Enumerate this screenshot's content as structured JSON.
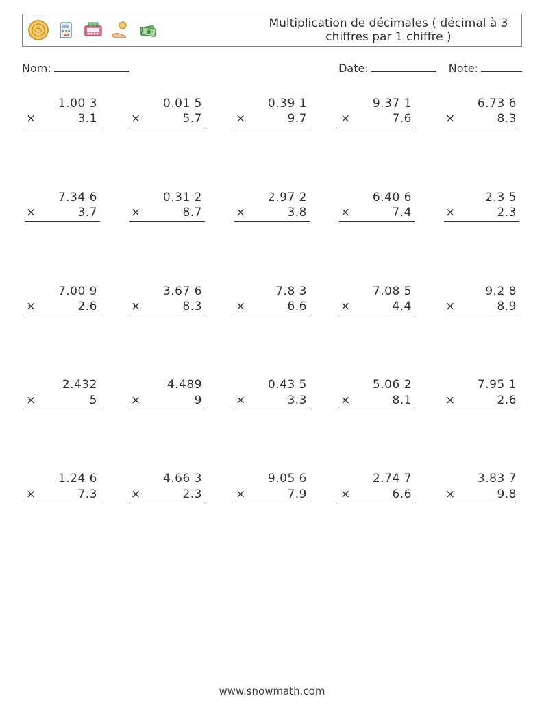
{
  "title": "Multiplication de décimales ( décimal à 3 chiffres par 1 chiffre )",
  "labels": {
    "name": "Nom:",
    "date": "Date:",
    "note": "Note:"
  },
  "blank_widths": {
    "name": 110,
    "date": 95,
    "note": 60
  },
  "operator_symbol": "×",
  "footer": "www.snowmath.com",
  "layout": {
    "rows": 5,
    "cols": 5
  },
  "style": {
    "font_size_body": 17,
    "font_size_title": 17,
    "text_color": "#333333",
    "border_color": "#888888",
    "rule_color": "#333333",
    "background": "#ffffff"
  },
  "icons": [
    "coin-icon",
    "card-reader-icon",
    "money-machine-icon",
    "hand-coin-icon",
    "cash-icon"
  ],
  "problems": [
    [
      {
        "a": "1.00 3",
        "b": "3.1"
      },
      {
        "a": "0.01 5",
        "b": "5.7"
      },
      {
        "a": "0.39 1",
        "b": "9.7"
      },
      {
        "a": "9.37 1",
        "b": "7.6"
      },
      {
        "a": "6.73 6",
        "b": "8.3"
      }
    ],
    [
      {
        "a": "7.34 6",
        "b": "3.7"
      },
      {
        "a": "0.31 2",
        "b": "8.7"
      },
      {
        "a": "2.97 2",
        "b": "3.8"
      },
      {
        "a": "6.40 6",
        "b": "7.4"
      },
      {
        "a": "2.3 5",
        "b": "2.3"
      }
    ],
    [
      {
        "a": "7.00 9",
        "b": "2.6"
      },
      {
        "a": "3.67 6",
        "b": "8.3"
      },
      {
        "a": "7.8 3",
        "b": "6.6"
      },
      {
        "a": "7.08 5",
        "b": "4.4"
      },
      {
        "a": "9.2 8",
        "b": "8.9"
      }
    ],
    [
      {
        "a": "2.432",
        "b": "5"
      },
      {
        "a": "4.489",
        "b": "9"
      },
      {
        "a": "0.43 5",
        "b": "3.3"
      },
      {
        "a": "5.06 2",
        "b": "8.1"
      },
      {
        "a": "7.95 1",
        "b": "2.6"
      }
    ],
    [
      {
        "a": "1.24 6",
        "b": "7.3"
      },
      {
        "a": "4.66 3",
        "b": "2.3"
      },
      {
        "a": "9.05 6",
        "b": "7.9"
      },
      {
        "a": "2.74 7",
        "b": "6.6"
      },
      {
        "a": "3.83 7",
        "b": "9.8"
      }
    ]
  ]
}
